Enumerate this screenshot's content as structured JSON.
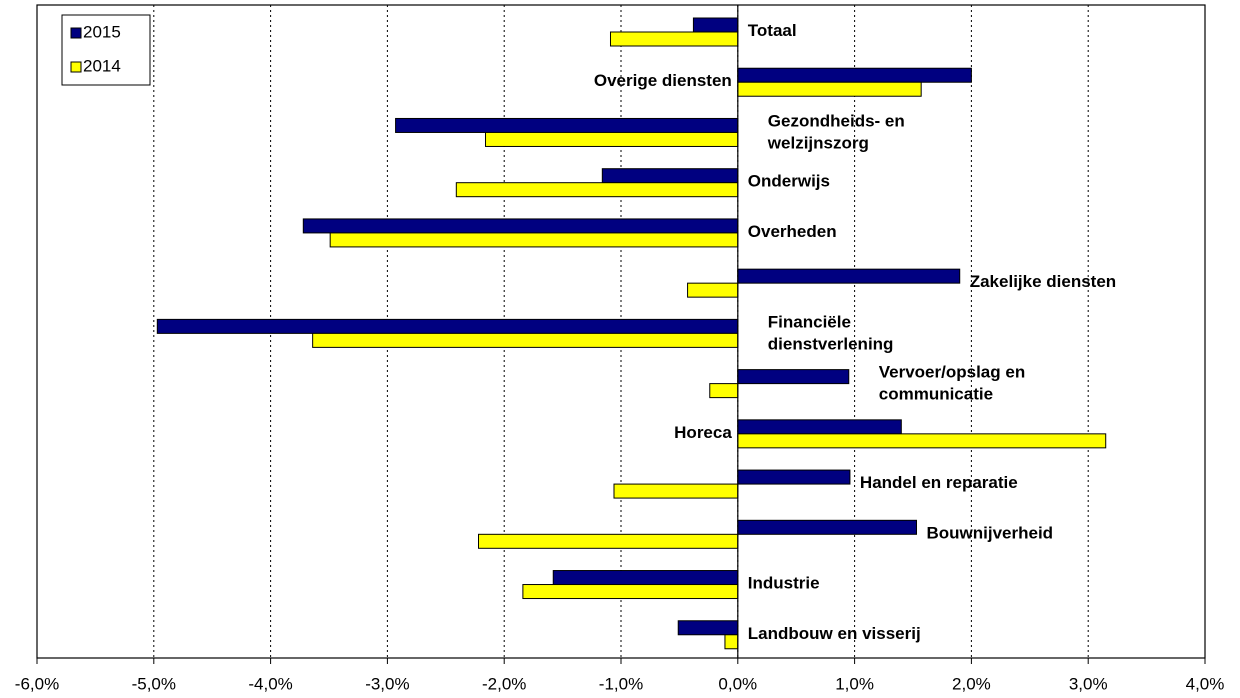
{
  "chart_data": {
    "type": "hbar",
    "categories": [
      [
        "Totaal"
      ],
      [
        "Overige diensten"
      ],
      [
        "Gezondheids- en",
        "welzijnszorg"
      ],
      [
        "Onderwijs"
      ],
      [
        "Overheden"
      ],
      [
        "Zakelijke  diensten"
      ],
      [
        "Financiële",
        "dienstverlening"
      ],
      [
        "Vervoer/opslag en",
        "communicatie"
      ],
      [
        "Horeca"
      ],
      [
        "Handel en reparatie"
      ],
      [
        "Bouwnijverheid"
      ],
      [
        "Industrie"
      ],
      [
        "Landbouw en visserij"
      ]
    ],
    "series": [
      {
        "name": "2015",
        "color": "#000080",
        "values": [
          -0.38,
          2.0,
          -2.93,
          -1.16,
          -3.72,
          1.9,
          -4.97,
          0.95,
          1.4,
          0.96,
          1.53,
          -1.58,
          -0.51
        ]
      },
      {
        "name": "2014",
        "color": "#ffff00",
        "values": [
          -1.09,
          1.57,
          -2.16,
          -2.41,
          -3.49,
          -0.43,
          -3.64,
          -0.24,
          3.15,
          -1.06,
          -2.22,
          -1.84,
          -0.11
        ]
      }
    ],
    "xlim": [
      -6,
      4
    ],
    "xticks": [
      {
        "value": -6,
        "label": "-6,0%"
      },
      {
        "value": -5,
        "label": "-5,0%"
      },
      {
        "value": -4,
        "label": "-4,0%"
      },
      {
        "value": -3,
        "label": "-3,0%"
      },
      {
        "value": -2,
        "label": "-2,0%"
      },
      {
        "value": -1,
        "label": "-1,0%"
      },
      {
        "value": 0,
        "label": "0,0%"
      },
      {
        "value": 1,
        "label": "1,0%"
      },
      {
        "value": 2,
        "label": "2,0%"
      },
      {
        "value": 3,
        "label": "3,0%"
      },
      {
        "value": 4,
        "label": "4,0%"
      }
    ],
    "grid": true,
    "legend": "top-left"
  }
}
